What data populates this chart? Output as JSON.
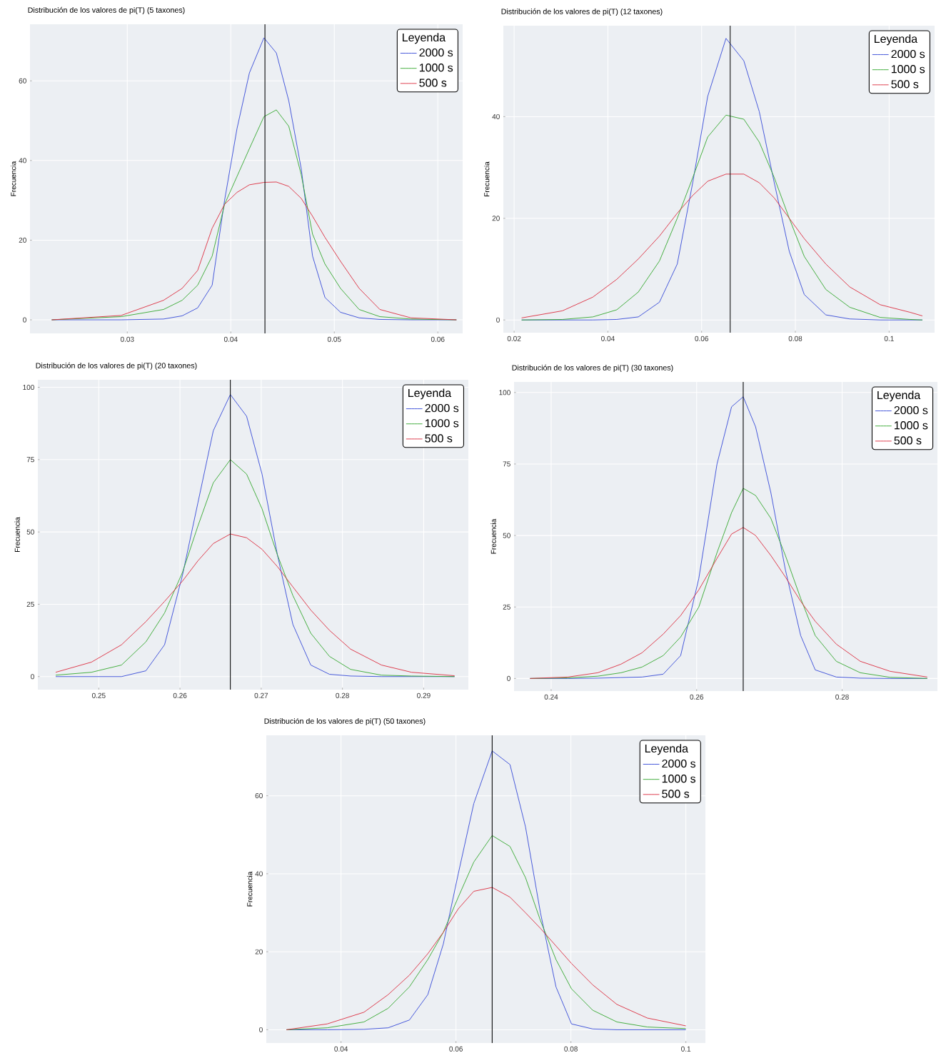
{
  "chart_data": [
    {
      "type": "line",
      "title": "Distribución de los valores de pi(T) (5 taxones)",
      "ylabel": "Frecuencia",
      "legend_title": "Leyenda",
      "grid": true,
      "legend": "top right",
      "x": [
        0.0227,
        0.0294,
        0.0335,
        0.0353,
        0.0368,
        0.0382,
        0.0394,
        0.0406,
        0.0418,
        0.0432,
        0.0444,
        0.0456,
        0.0468,
        0.0479,
        0.0491,
        0.0506,
        0.0524,
        0.0544,
        0.0574,
        0.0618
      ],
      "series": [
        {
          "name": "2000 s",
          "color": "#3b4fd8",
          "values": [
            0,
            0,
            0.2,
            1,
            3,
            8.7,
            30,
            48,
            62,
            70.8,
            67,
            55,
            38,
            16,
            5.6,
            1.9,
            0.5,
            0.1,
            0,
            0
          ]
        },
        {
          "name": "1000 s",
          "color": "#3aaa35",
          "values": [
            0,
            0.8,
            2.6,
            4.9,
            8.7,
            16,
            29,
            36,
            43,
            51,
            52.7,
            48.6,
            36.5,
            21.5,
            14,
            7.9,
            2.6,
            0.8,
            0.2,
            0
          ]
        },
        {
          "name": "500 s",
          "color": "#dd3344",
          "values": [
            0,
            1.1,
            4.9,
            7.9,
            12.4,
            23,
            29,
            32,
            33.9,
            34.5,
            34.6,
            33.5,
            30.5,
            26,
            20.7,
            14.7,
            7.9,
            2.6,
            0.5,
            0
          ]
        }
      ],
      "xlim": [
        0.0206,
        0.0624
      ],
      "ylim": [
        -3.4,
        74.2
      ],
      "xticks": [
        0.03,
        0.04,
        0.05,
        0.06
      ],
      "yticks": [
        0,
        20,
        40,
        60
      ],
      "ref_lines": [
        {
          "axis": "x",
          "value": 0.0433,
          "color": "#000000"
        }
      ]
    },
    {
      "type": "line",
      "title": "Distribución de los valores de pi(T) (12 taxones)",
      "ylabel": "Frecuencia",
      "legend_title": "Leyenda",
      "grid": true,
      "legend": "top right",
      "x": [
        0.0216,
        0.0303,
        0.0368,
        0.0419,
        0.0465,
        0.051,
        0.0548,
        0.0581,
        0.0613,
        0.0652,
        0.069,
        0.0723,
        0.0755,
        0.0787,
        0.0819,
        0.0865,
        0.0916,
        0.0981,
        0.1045,
        0.1071
      ],
      "series": [
        {
          "name": "2000 s",
          "color": "#3b4fd8",
          "values": [
            0,
            0,
            0,
            0.1,
            0.6,
            3.5,
            11,
            27,
            44,
            55.4,
            51,
            41,
            27,
            13.5,
            5,
            1,
            0.2,
            0,
            0,
            0
          ]
        },
        {
          "name": "1000 s",
          "color": "#3aaa35",
          "values": [
            0,
            0.1,
            0.6,
            2,
            5.5,
            11.6,
            20,
            28,
            36,
            40.3,
            39.5,
            35,
            28,
            20,
            12.5,
            6,
            2.5,
            0.5,
            0.1,
            0
          ]
        },
        {
          "name": "500 s",
          "color": "#dd3344",
          "values": [
            0.4,
            1.8,
            4.5,
            8,
            12,
            16.5,
            21,
            24.5,
            27.3,
            28.7,
            28.7,
            27,
            24,
            20,
            16,
            11,
            6.5,
            3,
            1.5,
            0.8
          ]
        }
      ],
      "xlim": [
        0.0177,
        0.1097
      ],
      "ylim": [
        -2.5,
        57.9
      ],
      "xticks": [
        0.02,
        0.04,
        0.06,
        0.08,
        0.1
      ],
      "yticks": [
        0,
        20,
        40
      ],
      "ref_lines": [
        {
          "axis": "x",
          "value": 0.0661,
          "color": "#000000"
        }
      ]
    },
    {
      "type": "line",
      "title": "Distribución de los valores de pi(T) (20 taxones)",
      "ylabel": "Frecuencia",
      "legend_title": "Leyenda",
      "grid": true,
      "legend": "top right",
      "x": [
        0.2447,
        0.2491,
        0.2528,
        0.2558,
        0.2581,
        0.2603,
        0.2622,
        0.2641,
        0.2662,
        0.2682,
        0.2701,
        0.272,
        0.2739,
        0.2761,
        0.2784,
        0.281,
        0.2848,
        0.2885,
        0.2938
      ],
      "series": [
        {
          "name": "2000 s",
          "color": "#3b4fd8",
          "values": [
            0,
            0,
            0,
            2,
            11,
            35,
            60,
            85,
            97.5,
            90,
            70,
            42,
            18,
            4,
            0.8,
            0.2,
            0,
            0,
            0
          ]
        },
        {
          "name": "1000 s",
          "color": "#3aaa35",
          "values": [
            0.5,
            1.5,
            4,
            12,
            22,
            36,
            52,
            67,
            75,
            70,
            58,
            42,
            28,
            15,
            7,
            2.5,
            0.5,
            0.2,
            0
          ]
        },
        {
          "name": "500 s",
          "color": "#dd3344",
          "values": [
            1.5,
            5,
            11,
            19,
            26,
            33,
            40,
            46,
            49.3,
            48,
            44,
            38,
            31,
            23,
            16,
            9.5,
            4,
            1.5,
            0.3
          ]
        }
      ],
      "xlim": [
        0.2425,
        0.2955
      ],
      "ylim": [
        -4.5,
        102.6
      ],
      "xticks": [
        0.25,
        0.26,
        0.27,
        0.28,
        0.29
      ],
      "yticks": [
        0,
        25,
        50,
        75,
        100
      ],
      "ref_lines": [
        {
          "axis": "x",
          "value": 0.2662,
          "color": "#000000"
        }
      ]
    },
    {
      "type": "line",
      "title": "Distribución de los valores de pi(T) (30 taxones)",
      "ylabel": "Frecuencia",
      "legend_title": "Leyenda",
      "grid": true,
      "legend": "top right",
      "x": [
        0.2371,
        0.2423,
        0.2464,
        0.2496,
        0.2525,
        0.2554,
        0.2578,
        0.2603,
        0.2628,
        0.2648,
        0.2664,
        0.2681,
        0.2702,
        0.2722,
        0.2743,
        0.2763,
        0.2792,
        0.2825,
        0.2866,
        0.2917
      ],
      "series": [
        {
          "name": "2000 s",
          "color": "#3b4fd8",
          "values": [
            0,
            0,
            0.1,
            0.3,
            0.5,
            1.5,
            8,
            35,
            75,
            95,
            98.5,
            88,
            65,
            38,
            15,
            3,
            0.5,
            0.1,
            0,
            0
          ]
        },
        {
          "name": "1000 s",
          "color": "#3aaa35",
          "values": [
            0,
            0.2,
            0.8,
            2,
            4,
            8,
            14.5,
            25,
            44,
            58,
            66.5,
            64,
            56,
            43,
            28,
            15,
            6,
            2,
            0.4,
            0
          ]
        },
        {
          "name": "500 s",
          "color": "#dd3344",
          "values": [
            0,
            0.5,
            2,
            5,
            9,
            15.5,
            22,
            31,
            42,
            50.5,
            52.8,
            50,
            43,
            35.5,
            27,
            20,
            12,
            6,
            2.5,
            0.5
          ]
        }
      ],
      "xlim": [
        0.2349,
        0.2931
      ],
      "ylim": [
        -4.4,
        103.7
      ],
      "xticks": [
        0.24,
        0.26,
        0.28
      ],
      "yticks": [
        0,
        25,
        50,
        75,
        100
      ],
      "ref_lines": [
        {
          "axis": "x",
          "value": 0.2664,
          "color": "#000000"
        }
      ]
    },
    {
      "type": "line",
      "title": "Distribución de los valores de pi(T) (50 taxones)",
      "ylabel": "Frecuencia",
      "legend_title": "Leyenda",
      "grid": true,
      "legend": "top right",
      "x": [
        0.0305,
        0.0376,
        0.044,
        0.0482,
        0.0519,
        0.0551,
        0.0578,
        0.0604,
        0.0631,
        0.0663,
        0.0694,
        0.0721,
        0.0747,
        0.0774,
        0.0801,
        0.0838,
        0.088,
        0.0933,
        0.1
      ],
      "series": [
        {
          "name": "2000 s",
          "color": "#3b4fd8",
          "values": [
            0,
            0,
            0.1,
            0.5,
            2.5,
            9,
            22,
            40,
            58,
            71.5,
            68,
            52,
            30,
            11,
            1.5,
            0.2,
            0,
            0,
            0
          ]
        },
        {
          "name": "1000 s",
          "color": "#3aaa35",
          "values": [
            0,
            0.5,
            2,
            5.5,
            11,
            18,
            25,
            34,
            43,
            49.8,
            47,
            39,
            28,
            18,
            10.5,
            5,
            2,
            0.7,
            0.3
          ]
        },
        {
          "name": "500 s",
          "color": "#dd3344",
          "values": [
            0,
            1.5,
            4.5,
            9,
            14,
            19.5,
            25,
            31,
            35.5,
            36.5,
            34,
            30,
            26,
            21.5,
            17,
            11.5,
            6.5,
            3,
            1
          ]
        }
      ],
      "xlim": [
        0.027,
        0.1034
      ],
      "ylim": [
        -3.4,
        75.5
      ],
      "xticks": [
        0.04,
        0.06,
        0.08,
        0.1
      ],
      "yticks": [
        0,
        20,
        40,
        60
      ],
      "ref_lines": [
        {
          "axis": "x",
          "value": 0.0663,
          "color": "#000000"
        }
      ]
    }
  ]
}
